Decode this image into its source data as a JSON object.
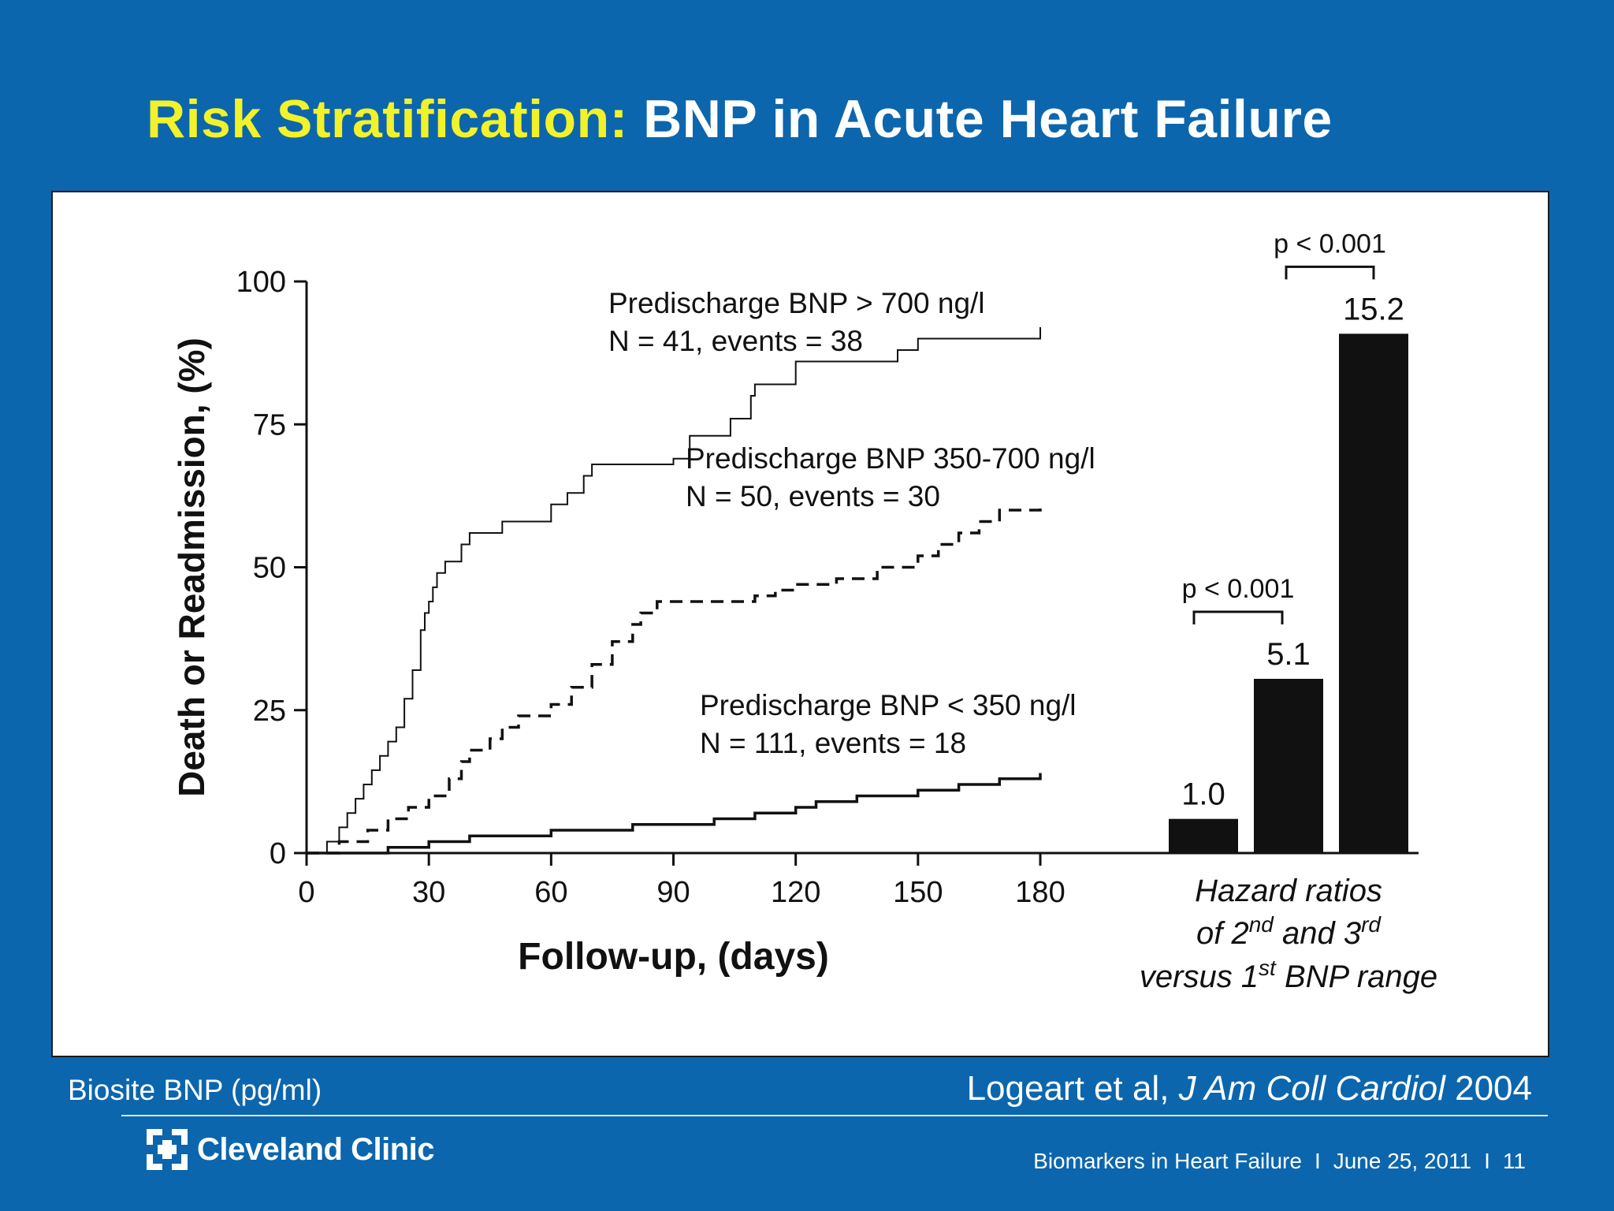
{
  "slide": {
    "title_highlight": "Risk Stratification:",
    "title_rest": " BNP in Acute Heart Failure",
    "note_left": "Biosite BNP (pg/ml)",
    "citation_plain": "Logeart et al, ",
    "citation_journal": "J Am Coll Cardiol",
    "citation_year": " 2004",
    "logo_text": "Cleveland Clinic",
    "footer_title": "Biomarkers in Heart Failure",
    "footer_sep": "I",
    "footer_date": "June 25, 2011",
    "footer_page": "11"
  },
  "colors": {
    "background": "#0c66ad",
    "title_highlight": "#f2f22a",
    "title_text": "#ffffff",
    "ink": "#111111"
  },
  "chart_data": [
    {
      "type": "line",
      "subtype": "kaplan-meier step",
      "xlabel": "Follow-up, (days)",
      "ylabel": "Death or Readmission, (%)",
      "xlim": [
        0,
        180
      ],
      "ylim": [
        0,
        100
      ],
      "xticks": [
        0,
        30,
        60,
        90,
        120,
        150,
        180
      ],
      "yticks": [
        0,
        25,
        50,
        75,
        100
      ],
      "grid": false,
      "series": [
        {
          "name": "Predischarge BNP > 700 ng/l",
          "subtitle": "N = 41, events = 38",
          "style": "solid-thin",
          "x": [
            0,
            5,
            8,
            10,
            12,
            14,
            16,
            18,
            20,
            22,
            24,
            26,
            28,
            29,
            30,
            31,
            32,
            34,
            38,
            40,
            42,
            48,
            55,
            60,
            64,
            68,
            70,
            90,
            94,
            104,
            109,
            110,
            120,
            137,
            145,
            150,
            180
          ],
          "y": [
            0,
            2,
            4.5,
            7,
            9.5,
            12,
            14.5,
            17,
            19.5,
            22,
            27,
            32,
            39,
            42,
            44,
            46.5,
            49,
            51,
            54,
            56,
            56,
            58,
            58,
            61,
            63,
            66,
            68,
            69,
            73,
            76,
            80,
            82,
            86,
            86,
            88,
            90,
            92
          ]
        },
        {
          "name": "Predischarge BNP 350-700 ng/l",
          "subtitle": "N = 50, events = 30",
          "style": "dashed",
          "x": [
            0,
            8,
            15,
            20,
            25,
            30,
            35,
            38,
            40,
            45,
            48,
            52,
            60,
            65,
            70,
            75,
            80,
            82,
            86,
            90,
            100,
            110,
            115,
            120,
            130,
            140,
            150,
            155,
            160,
            165,
            170,
            180
          ],
          "y": [
            0,
            2,
            4,
            6,
            8,
            10,
            13,
            16,
            18,
            20,
            22,
            24,
            26,
            29,
            33,
            37,
            40,
            42,
            44,
            44,
            44,
            45,
            46,
            47,
            48,
            50,
            52,
            54,
            56,
            58,
            60,
            61
          ]
        },
        {
          "name": "Predischarge BNP < 350 ng/l",
          "subtitle": "N = 111, events = 18",
          "style": "solid-thick",
          "x": [
            0,
            20,
            30,
            40,
            60,
            80,
            100,
            110,
            120,
            125,
            135,
            150,
            160,
            170,
            180
          ],
          "y": [
            0,
            1,
            2,
            3,
            4,
            5,
            6,
            7,
            8,
            9,
            10,
            11,
            12,
            13,
            14
          ]
        }
      ]
    },
    {
      "type": "bar",
      "categories": [
        "1st",
        "2nd",
        "3rd"
      ],
      "values": [
        1.0,
        5.1,
        15.2
      ],
      "labels": [
        "1.0",
        "5.1",
        "15.2"
      ],
      "ylim": [
        0,
        18
      ],
      "xlabel_lines": [
        "Hazard ratios",
        "of 2",
        "nd",
        " and 3",
        "rd",
        "versus 1",
        "st",
        " BNP range"
      ],
      "comparisons": [
        {
          "from": 0,
          "to": 1,
          "label": "p < 0.001"
        },
        {
          "from": 1,
          "to": 2,
          "label": "p < 0.001"
        }
      ]
    }
  ]
}
